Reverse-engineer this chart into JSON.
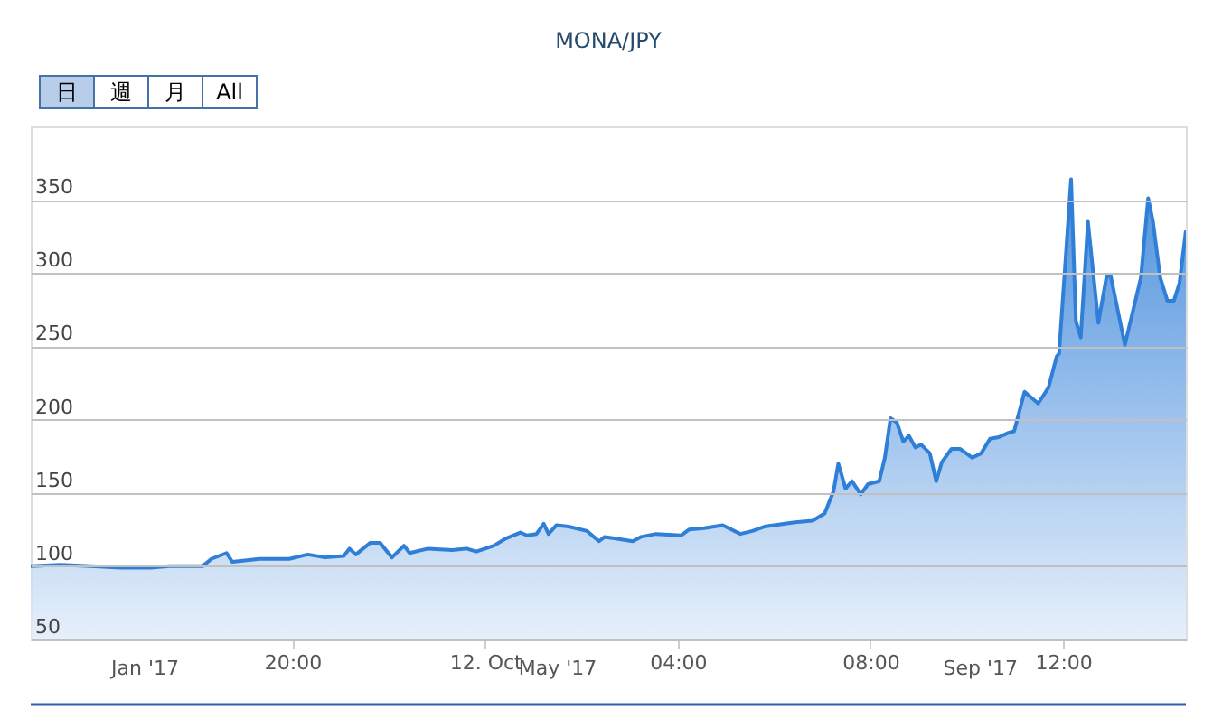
{
  "chart_data": {
    "type": "area",
    "title": "MONA/JPY",
    "x": [
      "2017-10-11T14:34",
      "2017-10-11T15:11",
      "2017-10-11T15:49",
      "2017-10-11T16:26",
      "2017-10-11T17:04",
      "2017-10-11T17:26",
      "2017-10-11T18:08",
      "2017-10-11T18:19",
      "2017-10-11T18:38",
      "2017-10-11T18:45",
      "2017-10-11T19:19",
      "2017-10-11T19:56",
      "2017-10-11T20:19",
      "2017-10-11T20:41",
      "2017-10-11T21:04",
      "2017-10-11T21:11",
      "2017-10-11T21:19",
      "2017-10-11T21:37",
      "2017-10-11T21:49",
      "2017-10-11T22:04",
      "2017-10-11T22:19",
      "2017-10-11T22:26",
      "2017-10-11T22:49",
      "2017-10-11T23:19",
      "2017-10-11T23:37",
      "2017-10-11T23:49",
      "2017-10-12T00:11",
      "2017-10-12T00:26",
      "2017-10-12T00:44",
      "2017-10-12T00:52",
      "2017-10-12T01:04",
      "2017-10-12T01:13",
      "2017-10-12T01:19",
      "2017-10-12T01:29",
      "2017-10-12T01:44",
      "2017-10-12T02:07",
      "2017-10-12T02:22",
      "2017-10-12T02:29",
      "2017-10-12T02:41",
      "2017-10-12T03:04",
      "2017-10-12T03:14",
      "2017-10-12T03:33",
      "2017-10-12T04:04",
      "2017-10-12T04:14",
      "2017-10-12T04:33",
      "2017-10-12T04:56",
      "2017-10-12T05:18",
      "2017-10-12T05:33",
      "2017-10-12T05:48",
      "2017-10-12T06:26",
      "2017-10-12T06:48",
      "2017-10-12T07:03",
      "2017-10-12T07:14",
      "2017-10-12T07:20",
      "2017-10-12T07:29",
      "2017-10-12T07:37",
      "2017-10-12T07:48",
      "2017-10-12T07:57",
      "2017-10-12T08:11",
      "2017-10-12T08:18",
      "2017-10-12T08:25",
      "2017-10-12T08:33",
      "2017-10-12T08:41",
      "2017-10-12T08:48",
      "2017-10-12T08:56",
      "2017-10-12T09:03",
      "2017-10-12T09:14",
      "2017-10-12T09:22",
      "2017-10-12T09:29",
      "2017-10-12T09:41",
      "2017-10-12T09:52",
      "2017-10-12T10:07",
      "2017-10-12T10:18",
      "2017-10-12T10:29",
      "2017-10-12T10:40",
      "2017-10-12T10:52",
      "2017-10-12T10:59",
      "2017-10-12T11:12",
      "2017-10-12T11:29",
      "2017-10-12T11:42",
      "2017-10-12T11:52",
      "2017-10-12T11:55",
      "2017-10-12T12:10",
      "2017-10-12T12:16",
      "2017-10-12T12:22",
      "2017-10-12T12:31",
      "2017-10-12T12:44",
      "2017-10-12T12:54",
      "2017-10-12T12:59",
      "2017-10-12T13:17",
      "2017-10-12T13:37",
      "2017-10-12T13:46",
      "2017-10-12T13:52",
      "2017-10-12T14:01",
      "2017-10-12T14:10",
      "2017-10-12T14:18",
      "2017-10-12T14:25",
      "2017-10-12T14:33"
    ],
    "series": [
      {
        "color": "#2f7ed8",
        "values": [
          100,
          101,
          100,
          99,
          99,
          100,
          100,
          105,
          109,
          103,
          105,
          105,
          108,
          106,
          107,
          112,
          108,
          116,
          116,
          106,
          114,
          109,
          112,
          111,
          112,
          110,
          114,
          119,
          123,
          121,
          122,
          129,
          122,
          128,
          127,
          124,
          117,
          120,
          119,
          117,
          120,
          122,
          121,
          125,
          126,
          128,
          122,
          124,
          127,
          130,
          131,
          136,
          151,
          170,
          153,
          158,
          149,
          156,
          158,
          174,
          201,
          198,
          185,
          189,
          181,
          183,
          177,
          158,
          171,
          180,
          180,
          174,
          177,
          187,
          188,
          191,
          192,
          219,
          211,
          222,
          243,
          245,
          364,
          267,
          256,
          335,
          266,
          297,
          299,
          251,
          297,
          351,
          335,
          297,
          281,
          281,
          293,
          329
        ]
      }
    ],
    "xlim": [
      "2017-10-11T14:34",
      "2017-10-12T14:33"
    ],
    "xticks": [
      {
        "value": "2017-10-11T20:00",
        "label": "20:00"
      },
      {
        "value": "2017-10-12T00:00",
        "label": "12. Oct"
      },
      {
        "value": "2017-10-12T04:00",
        "label": "04:00"
      },
      {
        "value": "2017-10-12T08:00",
        "label": "08:00"
      },
      {
        "value": "2017-10-12T12:00",
        "label": "12:00"
      }
    ],
    "x2lim": [
      "2016-11-29",
      "2017-10-31"
    ],
    "x2ticks": [
      {
        "value": "2017-01-01",
        "label": "Jan '17"
      },
      {
        "value": "2017-05-01",
        "label": "May '17"
      },
      {
        "value": "2017-09-01",
        "label": "Sep '17"
      }
    ],
    "ylim": [
      50,
      400
    ],
    "yticks": [
      50,
      100,
      150,
      200,
      250,
      300,
      350
    ],
    "grid": "y",
    "annotations": [
      "日",
      "週",
      "月",
      "All"
    ]
  }
}
